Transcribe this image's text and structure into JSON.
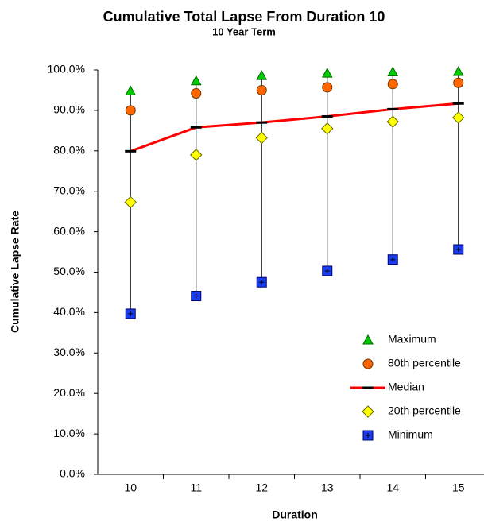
{
  "chart_data": {
    "type": "line",
    "title": "Cumulative Total Lapse From Duration 10",
    "subtitle": "10 Year Term",
    "x_label": "Duration",
    "y_label": "Cumulative Lapse Rate",
    "categories": [
      "10",
      "11",
      "12",
      "13",
      "14",
      "15"
    ],
    "ylim": [
      0,
      100
    ],
    "yticks": [
      {
        "value": 0,
        "label": "0.0%"
      },
      {
        "value": 10,
        "label": "10.0%"
      },
      {
        "value": 20,
        "label": "20.0%"
      },
      {
        "value": 30,
        "label": "30.0%"
      },
      {
        "value": 40,
        "label": "40.0%"
      },
      {
        "value": 50,
        "label": "50.0%"
      },
      {
        "value": 60,
        "label": "60.0%"
      },
      {
        "value": 70,
        "label": "70.0%"
      },
      {
        "value": 80,
        "label": "80.0%"
      },
      {
        "value": 90,
        "label": "90.0%"
      },
      {
        "value": 100,
        "label": "100.0%"
      }
    ],
    "grid": false,
    "legend": "right",
    "series": [
      {
        "name": "Maximum",
        "color": "#00cc00",
        "marker": "triangle",
        "values": [
          94.8,
          97.3,
          98.6,
          99.2,
          99.5,
          99.6
        ]
      },
      {
        "name": "80th percentile",
        "color": "#ff6600",
        "marker": "circle",
        "values": [
          90.0,
          94.2,
          95.0,
          95.7,
          96.5,
          96.8
        ]
      },
      {
        "name": "Median",
        "color": "#ff0000",
        "marker": "dash",
        "values": [
          79.9,
          85.8,
          87.0,
          88.5,
          90.3,
          91.7
        ]
      },
      {
        "name": "20th percentile",
        "color": "#ffff00",
        "marker": "diamond",
        "values": [
          67.3,
          79.0,
          83.2,
          85.5,
          87.2,
          88.2
        ]
      },
      {
        "name": "Minimum",
        "color": "#1a3cf0",
        "marker": "square",
        "values": [
          39.7,
          44.1,
          47.5,
          50.3,
          53.1,
          55.6
        ]
      }
    ]
  }
}
